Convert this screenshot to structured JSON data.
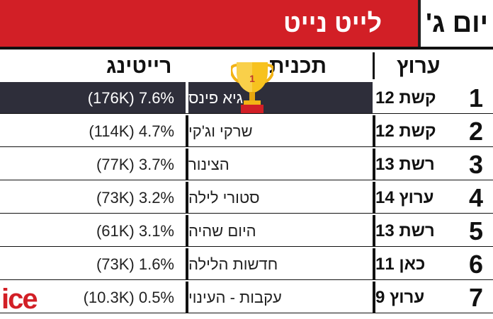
{
  "header": {
    "day": "יום ג'",
    "title": "לייט נייט"
  },
  "columns": {
    "channel": "ערוץ",
    "show": "תכנית",
    "rating": "רייטינג"
  },
  "rows": [
    {
      "rank": "1",
      "channel": "קשת 12",
      "show": "גיא פינס",
      "rating": "(176K) 7.6%"
    },
    {
      "rank": "2",
      "channel": "קשת 12",
      "show": "שרקי וג'קי",
      "rating": "(114K) 4.7%"
    },
    {
      "rank": "3",
      "channel": "רשת 13",
      "show": "הצינור",
      "rating": "(77K) 3.7%"
    },
    {
      "rank": "4",
      "channel": "ערוץ 14",
      "show": "סטורי לילה",
      "rating": "(73K) 3.2%"
    },
    {
      "rank": "5",
      "channel": "רשת 13",
      "show": "היום שהיה",
      "rating": "(61K) 3.1%"
    },
    {
      "rank": "6",
      "channel": "כאן 11",
      "show": "חדשות הלילה",
      "rating": "(73K) 1.6%"
    },
    {
      "rank": "7",
      "channel": "ערוץ 9",
      "show": "עקבות - העינוי",
      "rating": "(10.3K) 0.5%"
    }
  ],
  "trophy": {
    "icon": "trophy-icon",
    "label": "1"
  },
  "logo": {
    "text": "ice",
    "color": "#d21f26"
  },
  "colors": {
    "accent": "#d21f26",
    "top_row": "#2e2e3a"
  },
  "chart_data": {
    "type": "table",
    "title": "לייט נייט",
    "subtitle": "יום ג'",
    "columns": [
      "ערוץ",
      "תכנית",
      "רייטינג"
    ],
    "rows": [
      [
        "קשת 12",
        "גיא פינס",
        "(176K) 7.6%"
      ],
      [
        "קשת 12",
        "שרקי וג'קי",
        "(114K) 4.7%"
      ],
      [
        "רשת 13",
        "הצינור",
        "(77K) 3.7%"
      ],
      [
        "ערוץ 14",
        "סטורי לילה",
        "(73K) 3.2%"
      ],
      [
        "רשת 13",
        "היום שהיה",
        "(61K) 3.1%"
      ],
      [
        "כאן 11",
        "חדשות הלילה",
        "(73K) 1.6%"
      ],
      [
        "ערוץ 9",
        "עקבות - העינוי",
        "(10.3K) 0.5%"
      ]
    ]
  }
}
